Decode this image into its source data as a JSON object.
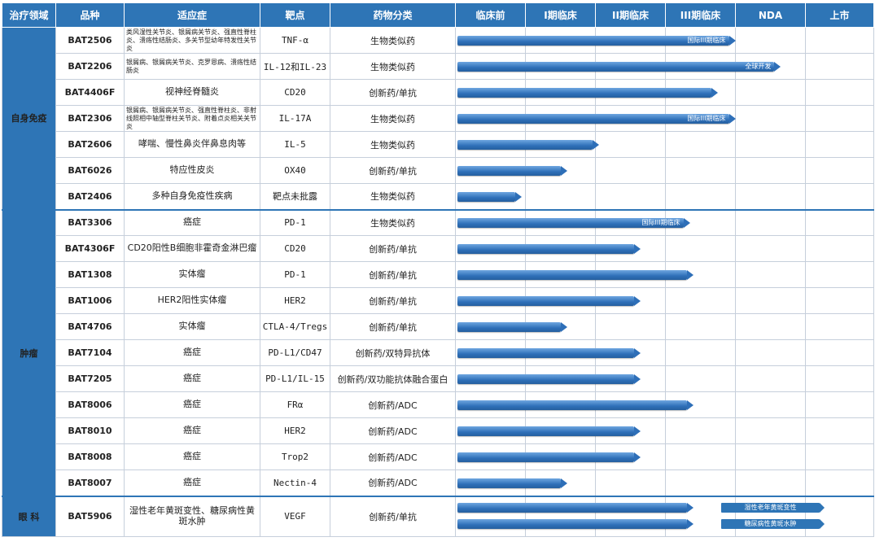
{
  "headers": [
    "治疗领域",
    "品种",
    "适应症",
    "靶点",
    "药物分类",
    "临床前",
    "I期临床",
    "II期临床",
    "III期临床",
    "NDA",
    "上市"
  ],
  "stages": [
    "临床前",
    "I期临床",
    "II期临床",
    "III期临床",
    "NDA",
    "上市"
  ],
  "colors": {
    "header": "#2e75b6",
    "bar": "#2e6fb8",
    "code": "#2e6fb0"
  },
  "areas": [
    {
      "name": "自身免疫",
      "rows": [
        {
          "code": "BAT2506",
          "indication": "类风湿性关节炎、银屑病关节炎、强直性脊柱炎、溃疡性结肠炎、多关节型幼年特发性关节炎",
          "small": true,
          "target": "TNF-α",
          "category": "生物类似药",
          "bars": [
            {
              "stage": 4.0,
              "label": "国际III期临床"
            }
          ]
        },
        {
          "code": "BAT2206",
          "indication": "银屑病、银屑病关节炎、克罗恩病、溃疡性结肠炎",
          "small": true,
          "target": "IL-12和IL-23",
          "category": "生物类似药",
          "bars": [
            {
              "stage": 4.65,
              "label": "全球开发"
            }
          ]
        },
        {
          "code": "BAT4406F",
          "indication": "视神经脊髓炎",
          "small": false,
          "target": "CD20",
          "category": "创新药/单抗",
          "bars": [
            {
              "stage": 3.75,
              "label": ""
            }
          ]
        },
        {
          "code": "BAT2306",
          "indication": "银屑病、银屑病关节炎、强直性脊柱炎、非射线照相中轴型脊柱关节炎、附着点炎相关关节炎",
          "small": true,
          "target": "IL-17A",
          "category": "生物类似药",
          "bars": [
            {
              "stage": 4.0,
              "label": "国际III期临床"
            }
          ]
        },
        {
          "code": "BAT2606",
          "indication": "哮喘、慢性鼻炎伴鼻息肉等",
          "small": false,
          "target": "IL-5",
          "category": "生物类似药",
          "bars": [
            {
              "stage": 2.05,
              "label": ""
            }
          ]
        },
        {
          "code": "BAT6026",
          "indication": "特应性皮炎",
          "small": false,
          "target": "OX40",
          "category": "创新药/单抗",
          "bars": [
            {
              "stage": 1.6,
              "label": ""
            }
          ]
        },
        {
          "code": "BAT2406",
          "indication": "多种自身免疫性疾病",
          "small": false,
          "target": "靶点未批露",
          "category": "生物类似药",
          "bars": [
            {
              "stage": 0.95,
              "label": ""
            }
          ]
        }
      ]
    },
    {
      "name": "肿瘤",
      "rows": [
        {
          "code": "BAT3306",
          "indication": "癌症",
          "small": false,
          "target": "PD-1",
          "category": "生物类似药",
          "bars": [
            {
              "stage": 3.35,
              "label": "国际III期临床"
            }
          ]
        },
        {
          "code": "BAT4306F",
          "indication": "CD20阳性B细胞非霍奇金淋巴瘤",
          "small": false,
          "target": "CD20",
          "category": "创新药/单抗",
          "bars": [
            {
              "stage": 2.65,
              "label": ""
            }
          ]
        },
        {
          "code": "BAT1308",
          "indication": "实体瘤",
          "small": false,
          "target": "PD-1",
          "category": "创新药/单抗",
          "bars": [
            {
              "stage": 3.4,
              "label": ""
            }
          ]
        },
        {
          "code": "BAT1006",
          "indication": "HER2阳性实体瘤",
          "small": false,
          "target": "HER2",
          "category": "创新药/单抗",
          "bars": [
            {
              "stage": 2.65,
              "label": ""
            }
          ]
        },
        {
          "code": "BAT4706",
          "indication": "实体瘤",
          "small": false,
          "target": "CTLA-4/Tregs",
          "category": "创新药/单抗",
          "bars": [
            {
              "stage": 1.6,
              "label": ""
            }
          ]
        },
        {
          "code": "BAT7104",
          "indication": "癌症",
          "small": false,
          "target": "PD-L1/CD47",
          "category": "创新药/双特异抗体",
          "bars": [
            {
              "stage": 2.65,
              "label": ""
            }
          ]
        },
        {
          "code": "BAT7205",
          "indication": "癌症",
          "small": false,
          "target": "PD-L1/IL-15",
          "category": "创新药/双功能抗体融合蛋白",
          "bars": [
            {
              "stage": 2.65,
              "label": ""
            }
          ]
        },
        {
          "code": "BAT8006",
          "indication": "癌症",
          "small": false,
          "target": "FRα",
          "category": "创新药/ADC",
          "bars": [
            {
              "stage": 3.4,
              "label": ""
            }
          ]
        },
        {
          "code": "BAT8010",
          "indication": "癌症",
          "small": false,
          "target": "HER2",
          "category": "创新药/ADC",
          "bars": [
            {
              "stage": 2.65,
              "label": ""
            }
          ]
        },
        {
          "code": "BAT8008",
          "indication": "癌症",
          "small": false,
          "target": "Trop2",
          "category": "创新药/ADC",
          "bars": [
            {
              "stage": 2.65,
              "label": ""
            }
          ]
        },
        {
          "code": "BAT8007",
          "indication": "癌症",
          "small": false,
          "target": "Nectin-4",
          "category": "创新药/ADC",
          "bars": [
            {
              "stage": 1.6,
              "label": ""
            }
          ]
        }
      ]
    },
    {
      "name": "眼 科",
      "rows": [
        {
          "code": "BAT5906",
          "indication": "湿性老年黄斑变性、糖尿病性黄斑水肿",
          "small": false,
          "target": "VEGF",
          "category": "创新药/单抗",
          "tall": true,
          "bars": [
            {
              "stage": 3.4,
              "label": "",
              "lane": 0,
              "tag": "湿性老年黄斑变性"
            },
            {
              "stage": 3.4,
              "label": "",
              "lane": 1,
              "tag": "糖尿病性黄斑水肿"
            }
          ]
        }
      ]
    }
  ]
}
